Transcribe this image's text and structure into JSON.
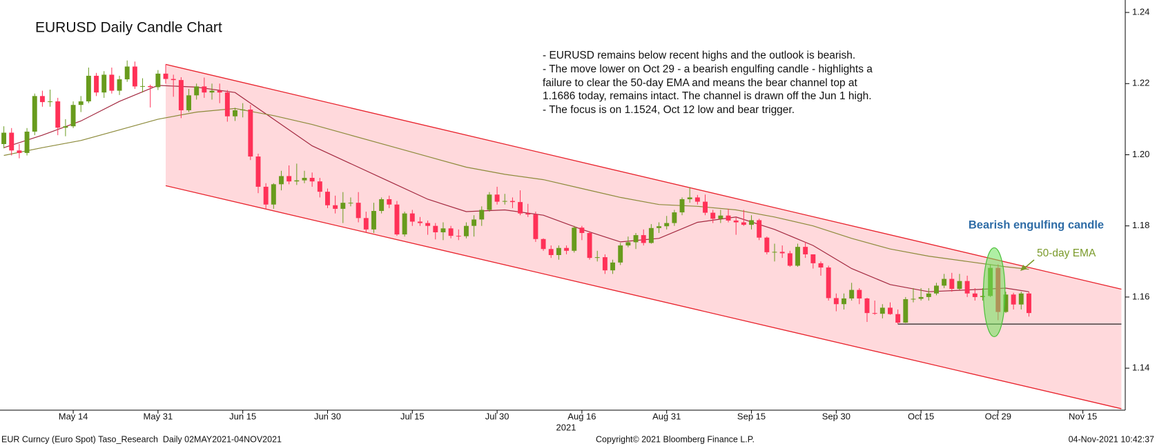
{
  "chart_data": {
    "type": "candlestick",
    "title": "EURUSD Daily Candle Chart",
    "commentary": [
      "- EURUSD remains below recent highs and the outlook is bearish.",
      "- The move lower on Oct 29 - a bearish engulfing candle - highlights a",
      "failure to clear the 50-day EMA and means the bear channel top at",
      "1.1686 today, remains intact. The channel is drawn off the Jun 1 high.",
      "- The focus is on 1.1524, Oct 12 low and bear trigger."
    ],
    "annotation": "Bearish engulfing candle",
    "x": [
      "2021-05-03",
      "2021-05-04",
      "2021-05-05",
      "2021-05-06",
      "2021-05-07",
      "2021-05-10",
      "2021-05-11",
      "2021-05-12",
      "2021-05-13",
      "2021-05-14",
      "2021-05-17",
      "2021-05-18",
      "2021-05-19",
      "2021-05-20",
      "2021-05-21",
      "2021-05-24",
      "2021-05-25",
      "2021-05-26",
      "2021-05-27",
      "2021-05-28",
      "2021-05-31",
      "2021-06-01",
      "2021-06-02",
      "2021-06-03",
      "2021-06-04",
      "2021-06-07",
      "2021-06-08",
      "2021-06-09",
      "2021-06-10",
      "2021-06-11",
      "2021-06-14",
      "2021-06-15",
      "2021-06-16",
      "2021-06-17",
      "2021-06-18",
      "2021-06-21",
      "2021-06-22",
      "2021-06-23",
      "2021-06-24",
      "2021-06-25",
      "2021-06-28",
      "2021-06-29",
      "2021-06-30",
      "2021-07-01",
      "2021-07-02",
      "2021-07-05",
      "2021-07-06",
      "2021-07-07",
      "2021-07-08",
      "2021-07-09",
      "2021-07-12",
      "2021-07-13",
      "2021-07-14",
      "2021-07-15",
      "2021-07-16",
      "2021-07-19",
      "2021-07-20",
      "2021-07-21",
      "2021-07-22",
      "2021-07-23",
      "2021-07-26",
      "2021-07-27",
      "2021-07-28",
      "2021-07-29",
      "2021-07-30",
      "2021-08-02",
      "2021-08-03",
      "2021-08-04",
      "2021-08-05",
      "2021-08-06",
      "2021-08-09",
      "2021-08-10",
      "2021-08-11",
      "2021-08-12",
      "2021-08-13",
      "2021-08-16",
      "2021-08-17",
      "2021-08-18",
      "2021-08-19",
      "2021-08-20",
      "2021-08-23",
      "2021-08-24",
      "2021-08-25",
      "2021-08-26",
      "2021-08-27",
      "2021-08-30",
      "2021-08-31",
      "2021-09-01",
      "2021-09-02",
      "2021-09-03",
      "2021-09-06",
      "2021-09-07",
      "2021-09-08",
      "2021-09-09",
      "2021-09-10",
      "2021-09-13",
      "2021-09-14",
      "2021-09-15",
      "2021-09-16",
      "2021-09-17",
      "2021-09-20",
      "2021-09-21",
      "2021-09-22",
      "2021-09-23",
      "2021-09-24",
      "2021-09-27",
      "2021-09-28",
      "2021-09-29",
      "2021-09-30",
      "2021-10-01",
      "2021-10-04",
      "2021-10-05",
      "2021-10-06",
      "2021-10-07",
      "2021-10-08",
      "2021-10-11",
      "2021-10-12",
      "2021-10-13",
      "2021-10-14",
      "2021-10-15",
      "2021-10-18",
      "2021-10-19",
      "2021-10-20",
      "2021-10-21",
      "2021-10-22",
      "2021-10-25",
      "2021-10-26",
      "2021-10-27",
      "2021-10-28",
      "2021-10-29",
      "2021-11-01",
      "2021-11-02",
      "2021-11-03",
      "2021-11-04"
    ],
    "open": [
      1.203,
      1.2062,
      1.2012,
      1.2005,
      1.2065,
      1.2165,
      1.2148,
      1.215,
      1.2076,
      1.208,
      1.214,
      1.215,
      1.2222,
      1.2175,
      1.2225,
      1.218,
      1.2212,
      1.2248,
      1.2192,
      1.2193,
      1.219,
      1.2228,
      1.2213,
      1.221,
      1.2125,
      1.2167,
      1.2192,
      1.2175,
      1.218,
      1.2175,
      1.2108,
      1.2125,
      1.2127,
      1.1995,
      1.191,
      1.186,
      1.1917,
      1.194,
      1.1925,
      1.1928,
      1.1935,
      1.1925,
      1.1896,
      1.1858,
      1.1848,
      1.1865,
      1.1865,
      1.1822,
      1.179,
      1.1842,
      1.1875,
      1.186,
      1.1776,
      1.1835,
      1.1812,
      1.1808,
      1.18,
      1.1782,
      1.1793,
      1.1772,
      1.1771,
      1.18,
      1.1818,
      1.1845,
      1.1888,
      1.1868,
      1.187,
      1.1867,
      1.1835,
      1.1832,
      1.1763,
      1.1735,
      1.1718,
      1.1738,
      1.173,
      1.1795,
      1.178,
      1.171,
      1.1712,
      1.1675,
      1.1697,
      1.1745,
      1.1754,
      1.1774,
      1.1752,
      1.1794,
      1.1799,
      1.1808,
      1.1838,
      1.1875,
      1.188,
      1.1868,
      1.1837,
      1.182,
      1.1829,
      1.1815,
      1.181,
      1.1803,
      1.1816,
      1.1767,
      1.1726,
      1.1727,
      1.1723,
      1.1688,
      1.1741,
      1.172,
      1.1695,
      1.1683,
      1.1597,
      1.158,
      1.1596,
      1.162,
      1.1596,
      1.1555,
      1.1553,
      1.157,
      1.1552,
      1.1528,
      1.1594,
      1.1595,
      1.16,
      1.161,
      1.1632,
      1.1651,
      1.1623,
      1.1645,
      1.161,
      1.16,
      1.1603,
      1.1682,
      1.1558,
      1.1607,
      1.1579,
      1.161
    ],
    "high": [
      1.208,
      1.2075,
      1.203,
      1.2075,
      1.2172,
      1.218,
      1.2183,
      1.216,
      1.21,
      1.215,
      1.2165,
      1.2245,
      1.223,
      1.2235,
      1.2245,
      1.2222,
      1.2265,
      1.2262,
      1.2215,
      1.2197,
      1.2238,
      1.2254,
      1.2225,
      1.2218,
      1.2185,
      1.22,
      1.2217,
      1.22,
      1.22,
      1.2182,
      1.2132,
      1.2145,
      1.214,
      1.2003,
      1.192,
      1.192,
      1.1955,
      1.197,
      1.1975,
      1.1955,
      1.195,
      1.1935,
      1.1905,
      1.1885,
      1.1895,
      1.188,
      1.1895,
      1.184,
      1.1865,
      1.188,
      1.1885,
      1.187,
      1.184,
      1.1845,
      1.1825,
      1.1815,
      1.1808,
      1.181,
      1.18,
      1.179,
      1.181,
      1.183,
      1.1855,
      1.1895,
      1.191,
      1.189,
      1.188,
      1.19,
      1.1862,
      1.184,
      1.1765,
      1.1745,
      1.1745,
      1.1745,
      1.18,
      1.18,
      1.1785,
      1.173,
      1.172,
      1.1705,
      1.1752,
      1.177,
      1.178,
      1.179,
      1.1805,
      1.181,
      1.1828,
      1.1845,
      1.188,
      1.1909,
      1.1887,
      1.1888,
      1.1845,
      1.1845,
      1.1848,
      1.1825,
      1.1845,
      1.183,
      1.182,
      1.177,
      1.175,
      1.1745,
      1.173,
      1.175,
      1.1755,
      1.172,
      1.17,
      1.1688,
      1.161,
      1.161,
      1.164,
      1.1625,
      1.1598,
      1.159,
      1.158,
      1.1585,
      1.1565,
      1.16,
      1.1625,
      1.1625,
      1.1625,
      1.164,
      1.1665,
      1.1668,
      1.1665,
      1.166,
      1.1625,
      1.1625,
      1.1692,
      1.1692,
      1.1615,
      1.1612,
      1.1615,
      1.1615
    ],
    "low": [
      1.2018,
      1.1998,
      1.199,
      1.1998,
      1.2055,
      1.2135,
      1.2135,
      1.2055,
      1.2052,
      1.2075,
      1.212,
      1.2145,
      1.2165,
      1.216,
      1.2172,
      1.2168,
      1.2205,
      1.2185,
      1.2175,
      1.2133,
      1.2182,
      1.22,
      1.2163,
      1.2103,
      1.212,
      1.2155,
      1.216,
      1.2155,
      1.2145,
      1.2093,
      1.2095,
      1.2105,
      1.1985,
      1.1892,
      1.1847,
      1.1848,
      1.19,
      1.1917,
      1.1915,
      1.192,
      1.191,
      1.188,
      1.185,
      1.1835,
      1.1808,
      1.1855,
      1.181,
      1.1782,
      1.178,
      1.1835,
      1.185,
      1.1772,
      1.177,
      1.18,
      1.18,
      1.1775,
      1.1762,
      1.176,
      1.1765,
      1.176,
      1.1765,
      1.177,
      1.18,
      1.184,
      1.186,
      1.186,
      1.185,
      1.183,
      1.1825,
      1.1755,
      1.173,
      1.171,
      1.1705,
      1.172,
      1.1725,
      1.176,
      1.1705,
      1.17,
      1.1665,
      1.1665,
      1.169,
      1.174,
      1.1735,
      1.1745,
      1.175,
      1.178,
      1.179,
      1.18,
      1.183,
      1.1865,
      1.186,
      1.183,
      1.1808,
      1.1808,
      1.181,
      1.1775,
      1.18,
      1.179,
      1.176,
      1.172,
      1.17,
      1.171,
      1.1685,
      1.1685,
      1.171,
      1.168,
      1.166,
      1.159,
      1.156,
      1.1565,
      1.159,
      1.158,
      1.153,
      1.155,
      1.154,
      1.155,
      1.1524,
      1.1527,
      1.1585,
      1.159,
      1.159,
      1.1605,
      1.1625,
      1.1615,
      1.162,
      1.16,
      1.159,
      1.159,
      1.16,
      1.1535,
      1.1555,
      1.1565,
      1.1565,
      1.1545
    ],
    "close": [
      1.2062,
      1.2012,
      1.2005,
      1.2065,
      1.2165,
      1.2148,
      1.215,
      1.2076,
      1.208,
      1.214,
      1.215,
      1.2222,
      1.2175,
      1.2225,
      1.218,
      1.2212,
      1.2248,
      1.2192,
      1.2193,
      1.219,
      1.2228,
      1.2213,
      1.221,
      1.2125,
      1.2167,
      1.2192,
      1.2175,
      1.218,
      1.2175,
      1.2108,
      1.2125,
      1.2127,
      1.1995,
      1.191,
      1.186,
      1.1917,
      1.194,
      1.1925,
      1.1928,
      1.1935,
      1.1925,
      1.1896,
      1.1858,
      1.1848,
      1.1865,
      1.1865,
      1.1822,
      1.179,
      1.1842,
      1.1875,
      1.186,
      1.1776,
      1.1835,
      1.1812,
      1.1808,
      1.18,
      1.1782,
      1.1793,
      1.1772,
      1.1771,
      1.18,
      1.1818,
      1.1845,
      1.1888,
      1.1868,
      1.187,
      1.1867,
      1.1835,
      1.1832,
      1.1763,
      1.1735,
      1.1718,
      1.1738,
      1.173,
      1.1795,
      1.178,
      1.171,
      1.1712,
      1.1675,
      1.1697,
      1.1745,
      1.1754,
      1.1774,
      1.1752,
      1.1794,
      1.1799,
      1.1808,
      1.1838,
      1.1875,
      1.188,
      1.1868,
      1.1837,
      1.182,
      1.1829,
      1.1815,
      1.181,
      1.1803,
      1.1816,
      1.1767,
      1.1726,
      1.1727,
      1.1723,
      1.1688,
      1.1741,
      1.172,
      1.1695,
      1.1683,
      1.1597,
      1.158,
      1.1596,
      1.162,
      1.1596,
      1.1555,
      1.1553,
      1.157,
      1.1552,
      1.1528,
      1.1594,
      1.1595,
      1.16,
      1.161,
      1.1632,
      1.1651,
      1.1623,
      1.1645,
      1.161,
      1.16,
      1.1603,
      1.1682,
      1.1558,
      1.1607,
      1.1579,
      1.161,
      1.1555
    ],
    "up_color": "#689b1d",
    "down_color": "#ff3157",
    "overlays": [
      {
        "color": "#a3283f",
        "x": [
          "2021-05-03",
          "2021-05-10",
          "2021-05-17",
          "2021-05-24",
          "2021-05-31",
          "2021-06-07",
          "2021-06-14",
          "2021-06-21",
          "2021-06-28",
          "2021-07-05",
          "2021-07-12",
          "2021-07-19",
          "2021-07-26",
          "2021-08-02",
          "2021-08-09",
          "2021-08-16",
          "2021-08-23",
          "2021-08-30",
          "2021-09-06",
          "2021-09-13",
          "2021-09-20",
          "2021-09-27",
          "2021-10-04",
          "2021-10-11",
          "2021-10-18",
          "2021-10-25",
          "2021-11-01",
          "2021-11-04"
        ],
        "values": [
          1.202,
          1.2055,
          1.2095,
          1.215,
          1.2195,
          1.219,
          1.2175,
          1.21,
          1.2025,
          1.1975,
          1.1925,
          1.1875,
          1.184,
          1.1845,
          1.183,
          1.179,
          1.1755,
          1.1765,
          1.181,
          1.1825,
          1.179,
          1.1745,
          1.168,
          1.1635,
          1.1615,
          1.162,
          1.1625,
          1.1615
        ]
      },
      {
        "name": "50-day EMA",
        "color": "#8c8a3a",
        "x": [
          "2021-05-03",
          "2021-05-10",
          "2021-05-17",
          "2021-05-24",
          "2021-05-31",
          "2021-06-07",
          "2021-06-14",
          "2021-06-21",
          "2021-06-28",
          "2021-07-05",
          "2021-07-12",
          "2021-07-19",
          "2021-07-26",
          "2021-08-02",
          "2021-08-09",
          "2021-08-16",
          "2021-08-23",
          "2021-08-30",
          "2021-09-06",
          "2021-09-13",
          "2021-09-20",
          "2021-09-27",
          "2021-10-04",
          "2021-10-11",
          "2021-10-18",
          "2021-10-25",
          "2021-11-01",
          "2021-11-04"
        ],
        "values": [
          1.1998,
          1.202,
          1.204,
          1.207,
          1.21,
          1.212,
          1.213,
          1.211,
          1.2085,
          1.2055,
          1.2025,
          1.1995,
          1.1965,
          1.1945,
          1.193,
          1.1905,
          1.188,
          1.186,
          1.1855,
          1.1845,
          1.1825,
          1.18,
          1.1765,
          1.1735,
          1.1715,
          1.17,
          1.1685,
          1.1678
        ]
      }
    ],
    "channel": {
      "x": [
        "2021-06-01",
        "2021-11-22"
      ],
      "upper": [
        1.2254,
        1.1622
      ],
      "lower": [
        1.1913,
        1.1286
      ],
      "color": "#e8202a",
      "fill": "#ffd9dc"
    },
    "support": {
      "x": [
        "2021-10-12",
        "2021-11-22"
      ],
      "value": 1.1524
    },
    "xlim": [
      "2021-05-03",
      "2021-11-22"
    ],
    "xticks": [
      {
        "value": "2021-05-14",
        "label": "May 14"
      },
      {
        "value": "2021-05-31",
        "label": "May 31"
      },
      {
        "value": "2021-06-15",
        "label": "Jun 15"
      },
      {
        "value": "2021-06-30",
        "label": "Jun 30"
      },
      {
        "value": "2021-07-15",
        "label": "Jul 15"
      },
      {
        "value": "2021-07-30",
        "label": "Jul 30"
      },
      {
        "value": "2021-08-16",
        "label": "Aug 16"
      },
      {
        "value": "2021-08-31",
        "label": "Aug 31"
      },
      {
        "value": "2021-09-15",
        "label": "Sep 15"
      },
      {
        "value": "2021-09-30",
        "label": "Sep 30"
      },
      {
        "value": "2021-10-15",
        "label": "Oct 15"
      },
      {
        "value": "2021-10-29",
        "label": "Oct 29"
      },
      {
        "value": "2021-11-15",
        "label": "Nov 15"
      }
    ],
    "x_year": "2021",
    "ylim": [
      1.1282,
      1.2435
    ],
    "yticks": [
      1.14,
      1.16,
      1.18,
      {
        "value": 1.2,
        "label": "1.20"
      },
      1.22,
      1.24
    ],
    "footer_left": "EUR Curncy (Euro Spot) Taso_Research  Daily 02MAY2021-04NOV2021",
    "footer_center": "Copyright© 2021 Bloomberg Finance L.P.",
    "footer_right": "04-Nov-2021 10:42:37"
  }
}
